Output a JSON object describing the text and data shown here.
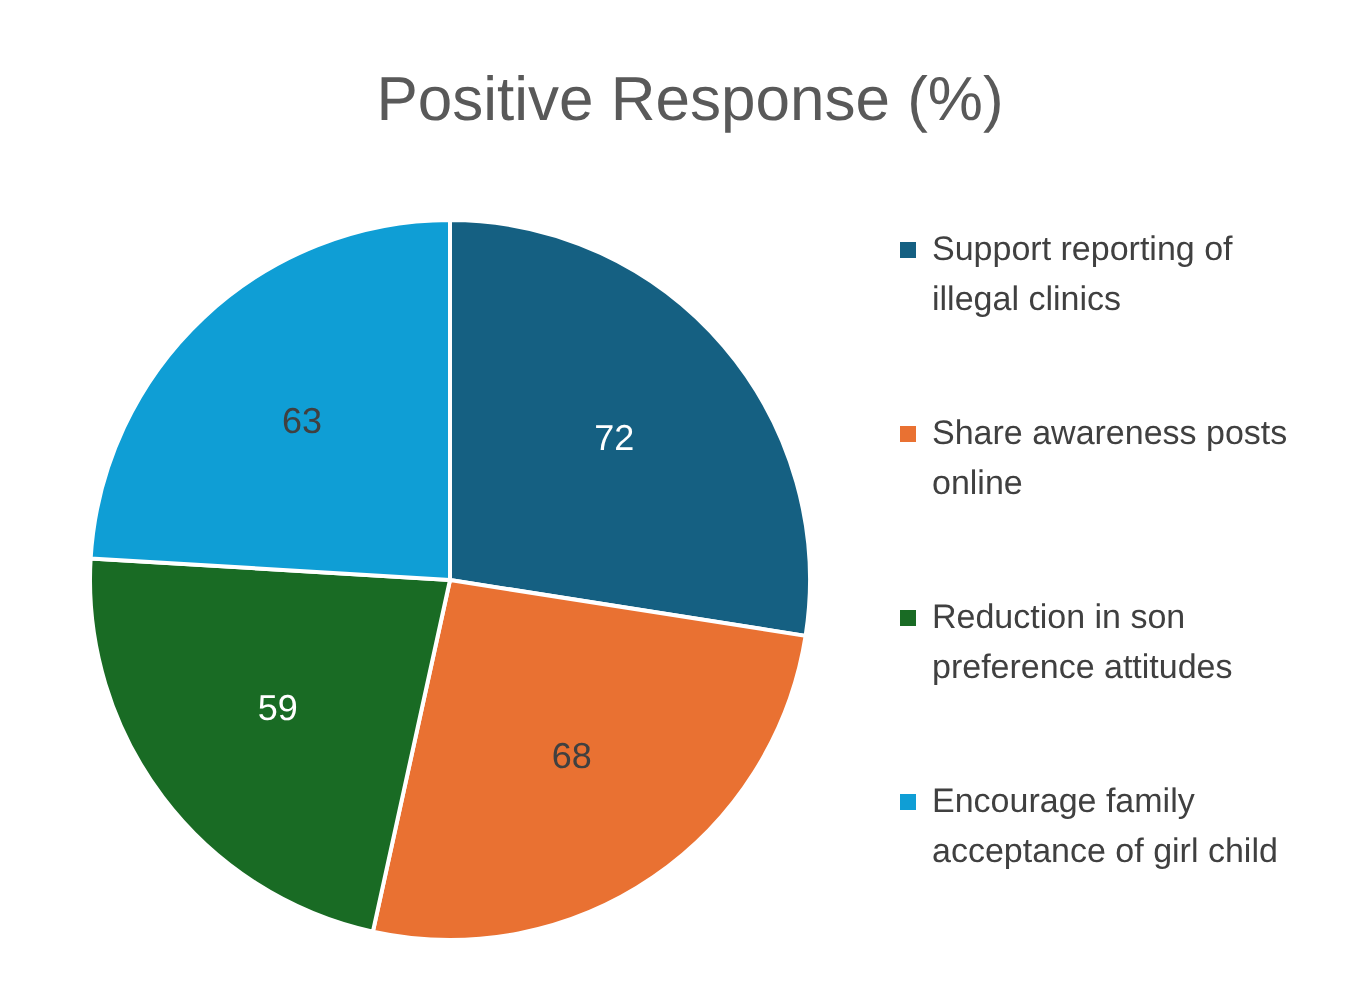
{
  "chart_data": {
    "type": "pie",
    "title": "Positive Response (%)",
    "categories": [
      "Support reporting of illegal clinics",
      "Share awareness posts online",
      "Reduction in son preference attitudes",
      "Encourage family acceptance of girl child"
    ],
    "values": [
      72,
      68,
      59,
      63
    ],
    "colors": [
      "#156082",
      "#e97132",
      "#196b24",
      "#0f9ed5"
    ],
    "data_labels": true,
    "legend": "right"
  }
}
